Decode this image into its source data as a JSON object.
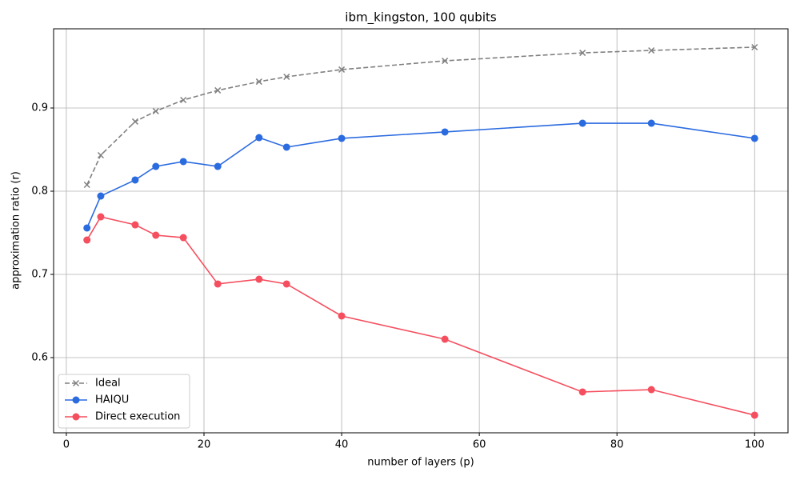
{
  "chart_data": {
    "type": "line",
    "title": "ibm_kingston, 100 qubits",
    "xlabel": "number of layers (p)",
    "ylabel": "approximation ratio (r)",
    "x": [
      3,
      5,
      10,
      13,
      17,
      22,
      28,
      32,
      40,
      55,
      75,
      85,
      100
    ],
    "series": [
      {
        "name": "Ideal",
        "color": "#808080",
        "linestyle": "dashed",
        "marker": "x",
        "values": [
          0.8077,
          0.8433,
          0.8837,
          0.8962,
          0.9096,
          0.9212,
          0.9317,
          0.9375,
          0.9462,
          0.9567,
          0.9663,
          0.9692,
          0.9731
        ]
      },
      {
        "name": "HAIQU",
        "color": "#2b6be0",
        "linestyle": "solid",
        "marker": "o",
        "values": [
          0.7558,
          0.7942,
          0.8135,
          0.8298,
          0.8356,
          0.8298,
          0.8644,
          0.8529,
          0.8635,
          0.8712,
          0.8817,
          0.8817,
          0.8635
        ]
      },
      {
        "name": "Direct execution",
        "color": "#f54e5e",
        "linestyle": "solid",
        "marker": "o",
        "values": [
          0.7413,
          0.7692,
          0.7596,
          0.7471,
          0.7442,
          0.6885,
          0.6942,
          0.6885,
          0.65,
          0.6221,
          0.5587,
          0.5615,
          0.5308
        ]
      }
    ],
    "xlim": [
      -1.85,
      104.85
    ],
    "ylim": [
      0.5096,
      0.9952
    ],
    "xticks": [
      0,
      20,
      40,
      60,
      80,
      100
    ],
    "yticks": [
      0.6,
      0.7,
      0.8,
      0.9
    ],
    "grid": true,
    "legend": "lower left"
  }
}
